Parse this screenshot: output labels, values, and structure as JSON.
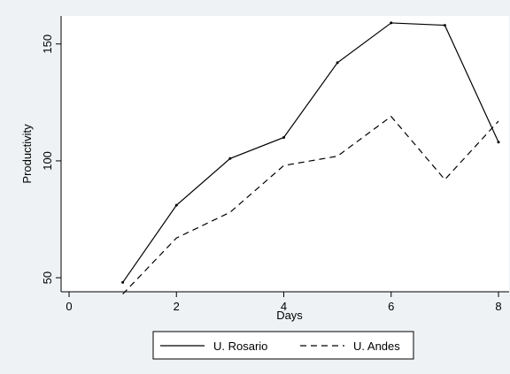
{
  "chart_data": {
    "type": "line",
    "xlabel": "Days",
    "ylabel": "Productivity",
    "xlim": [
      0,
      8
    ],
    "ylim": [
      44,
      162
    ],
    "xticks": [
      "0",
      "2",
      "4",
      "6",
      "8"
    ],
    "xtick_values": [
      0,
      2,
      4,
      6,
      8
    ],
    "yticks": [
      "50",
      "100",
      "150"
    ],
    "ytick_values": [
      50,
      100,
      150
    ],
    "grid": false,
    "legend_position": "bottom",
    "series": [
      {
        "name": "U. Rosario",
        "style": "solid",
        "x": [
          1,
          2,
          3,
          4,
          5,
          6,
          7,
          8
        ],
        "values": [
          48,
          81,
          101,
          110,
          142,
          159,
          158,
          108
        ]
      },
      {
        "name": "U. Andes",
        "style": "dashed",
        "x": [
          1,
          2,
          3,
          4,
          5,
          6,
          7,
          8
        ],
        "values": [
          43,
          67,
          78,
          98,
          102,
          119,
          92,
          117
        ]
      }
    ],
    "colors": {
      "background": "#eef2f4",
      "plot_area": "#ffffff",
      "line": "#000000"
    }
  }
}
